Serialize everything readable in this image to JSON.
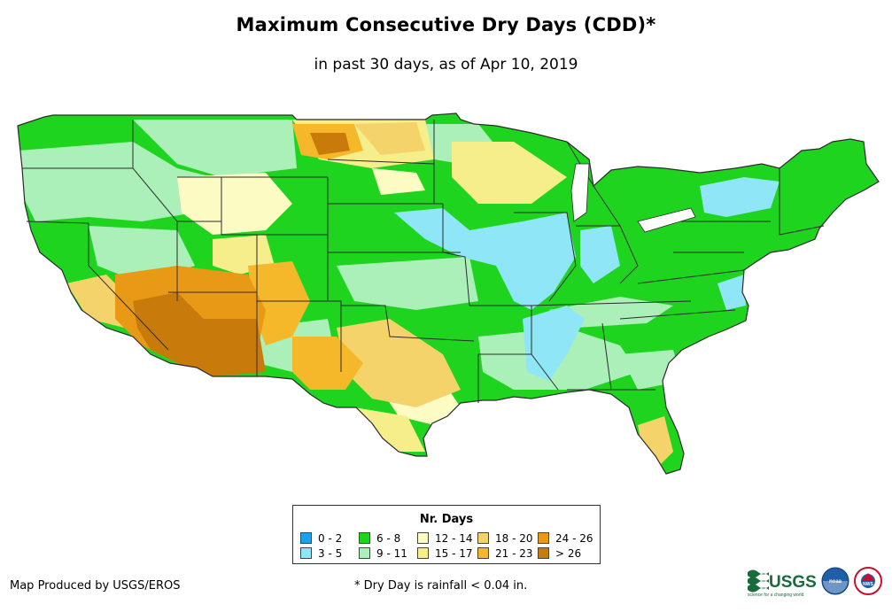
{
  "title": "Maximum Consecutive Dry Days (CDD)*",
  "subtitle": "in past 30 days, as of Apr 10, 2019",
  "legend": {
    "title": "Nr. Days",
    "classes": [
      {
        "label": "0 - 2",
        "color": "#1aa3e8"
      },
      {
        "label": "3 - 5",
        "color": "#8fe6f7"
      },
      {
        "label": "6 - 8",
        "color": "#1fd41f"
      },
      {
        "label": "9 - 11",
        "color": "#aaf0b8"
      },
      {
        "label": "12 - 14",
        "color": "#fdfbc4"
      },
      {
        "label": "15 - 17",
        "color": "#f6ee8a"
      },
      {
        "label": "18 - 20",
        "color": "#f5d36b"
      },
      {
        "label": "21 - 23",
        "color": "#f5b82b"
      },
      {
        "label": "24 - 26",
        "color": "#e89a17"
      },
      {
        "label": "> 26",
        "color": "#c87a0a"
      }
    ]
  },
  "footer": {
    "credit": "Map Produced by USGS/EROS",
    "note": "* Dry Day is rainfall < 0.04 in."
  },
  "logos": {
    "usgs_text": "USGS",
    "usgs_tagline": "science for a changing world",
    "noaa_text": "noaa",
    "nws_text": "NWS"
  },
  "colors": {
    "base_green": "#1fd41f",
    "state_border": "#2b2b2b"
  }
}
